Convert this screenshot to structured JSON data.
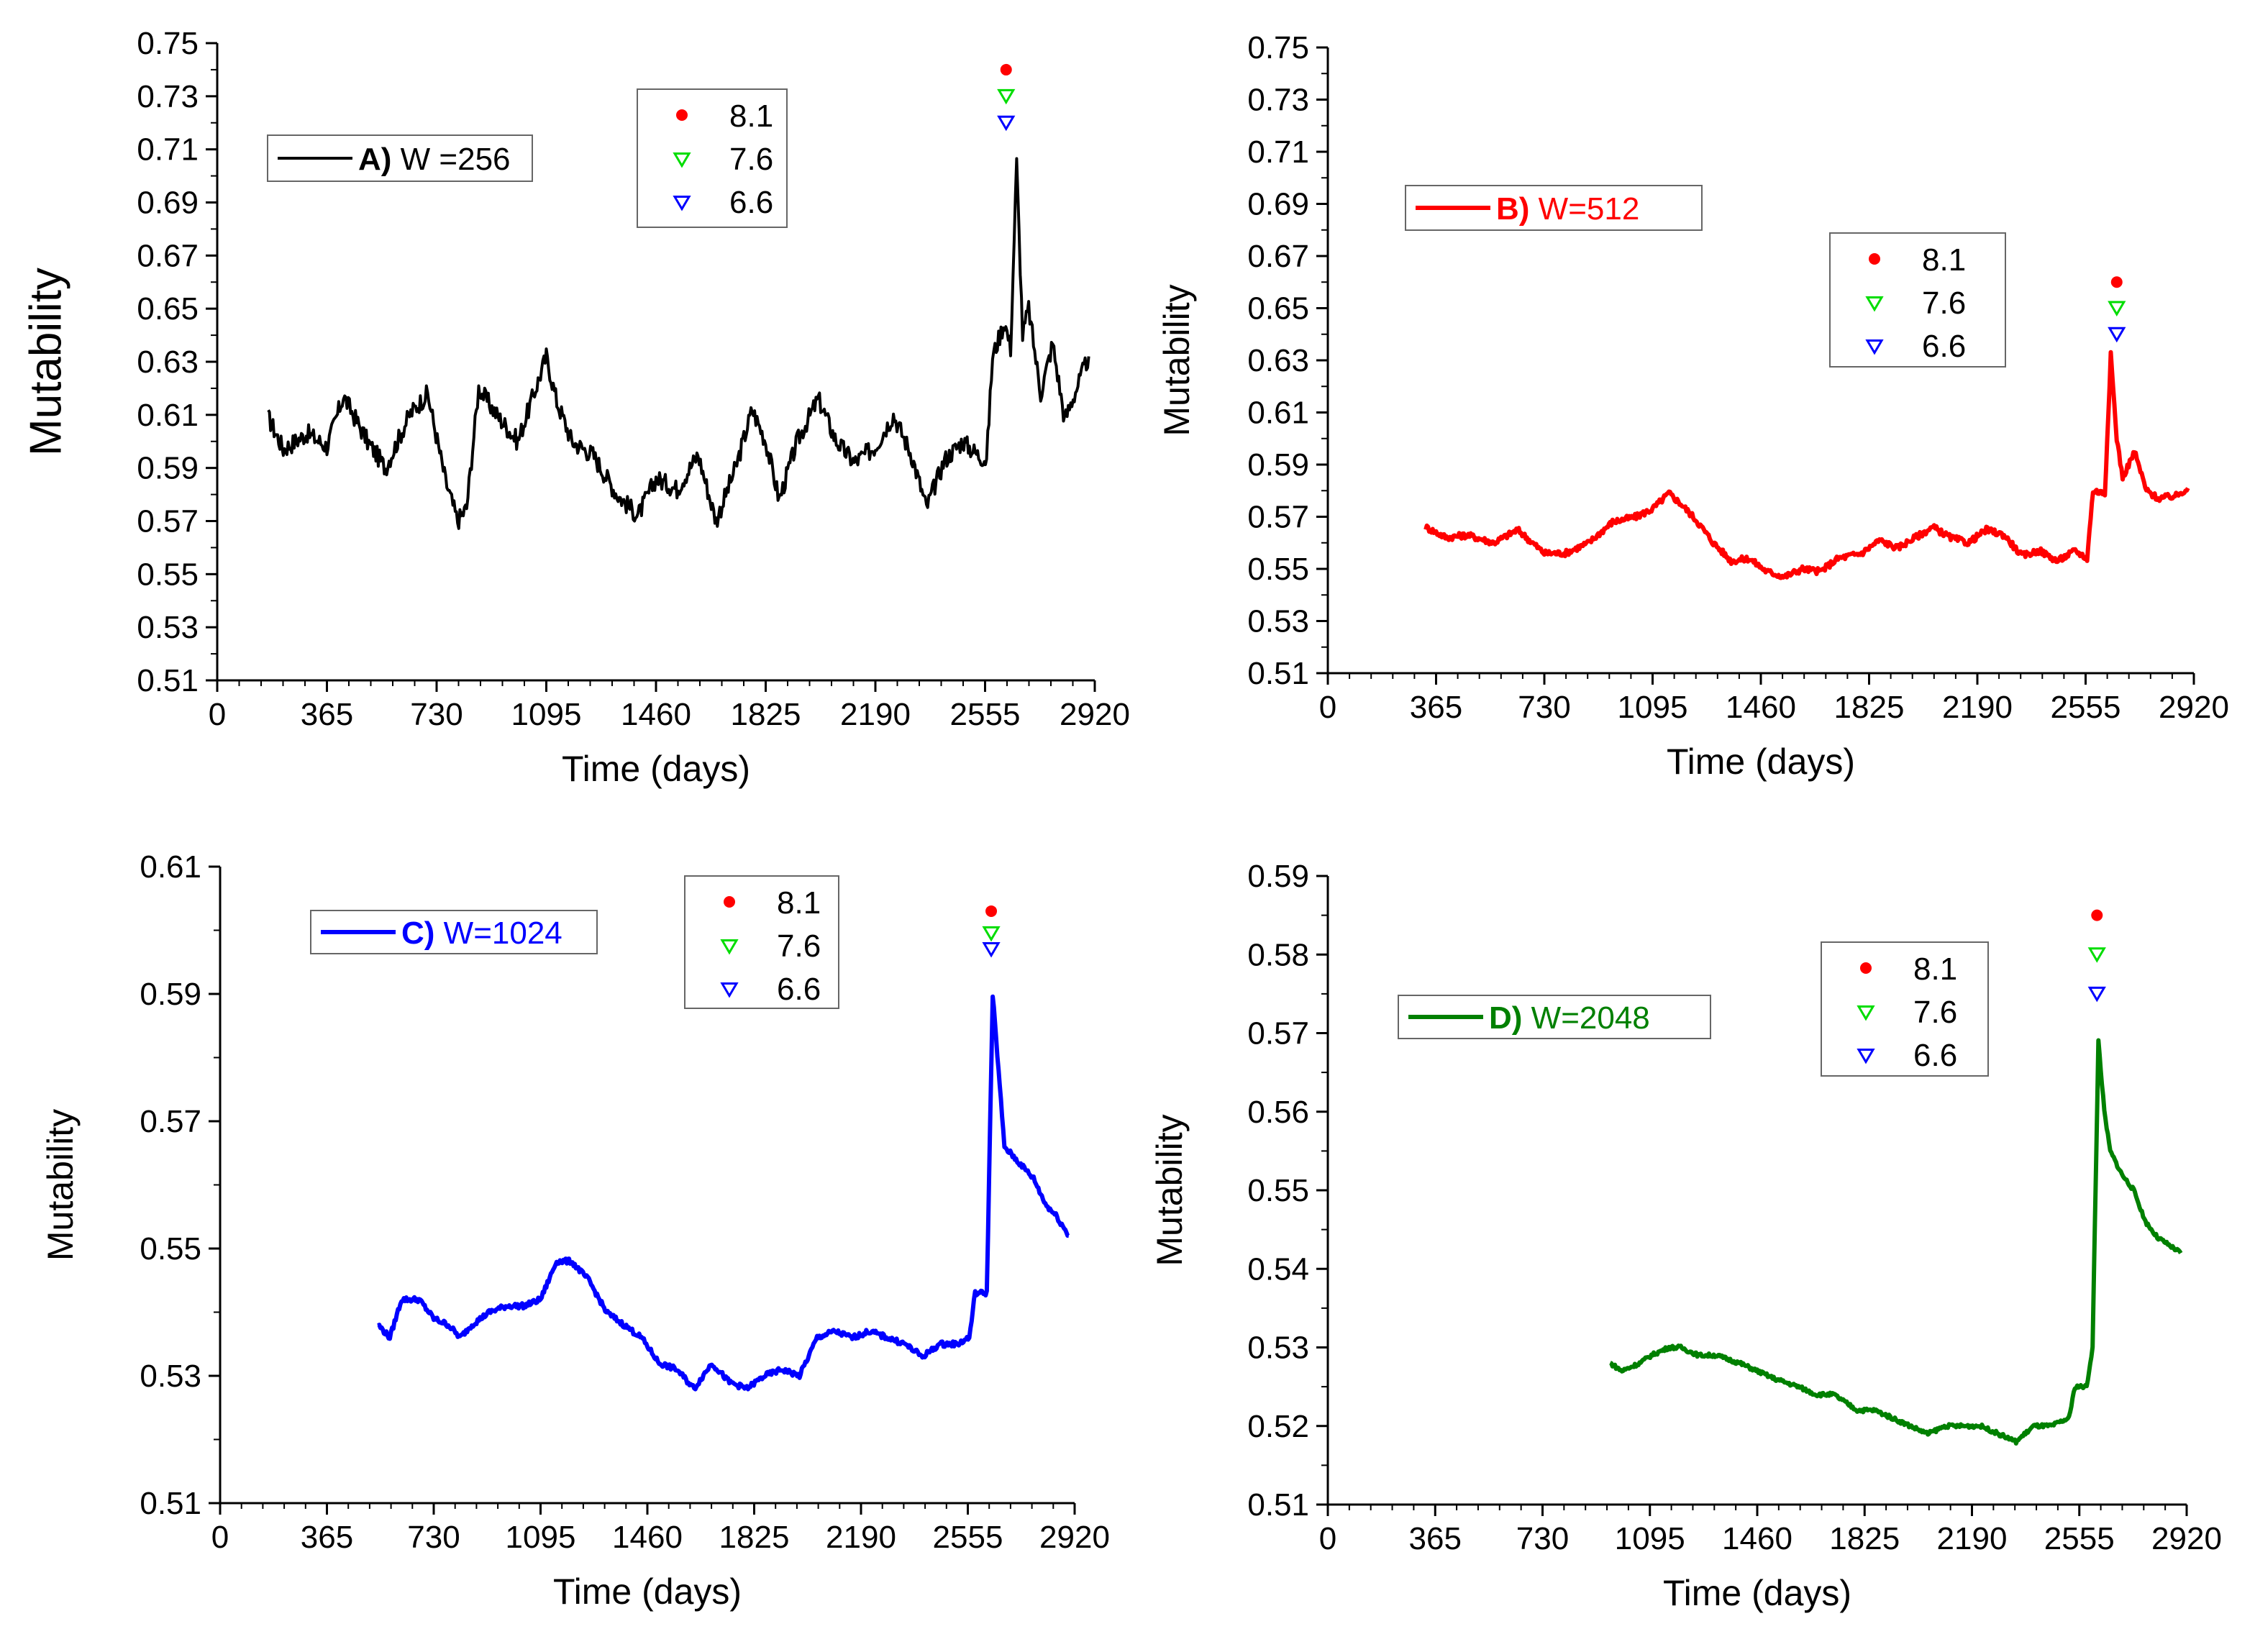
{
  "chart_data": [
    {
      "panel": "A",
      "type": "line",
      "series_label_bold": "A)",
      "series_label_rest": " W =256",
      "color": "#000000",
      "xlabel": "Time (days)",
      "ylabel": "Mutability",
      "xlim": [
        0,
        2920
      ],
      "ylim": [
        0.51,
        0.75
      ],
      "xticks": [
        0,
        365,
        730,
        1095,
        1460,
        1825,
        2190,
        2555,
        2920
      ],
      "yticks": [
        "0.51",
        "0.53",
        "0.55",
        "0.57",
        "0.59",
        "0.61",
        "0.63",
        "0.65",
        "0.67",
        "0.69",
        "0.71",
        "0.73",
        "0.75"
      ],
      "line_width": 4,
      "noise": 0.006,
      "x": [
        170,
        220,
        300,
        365,
        420,
        500,
        560,
        640,
        700,
        760,
        800,
        830,
        870,
        930,
        1000,
        1060,
        1095,
        1130,
        1180,
        1250,
        1330,
        1400,
        1460,
        1530,
        1600,
        1660,
        1725,
        1780,
        1825,
        1870,
        1930,
        2000,
        2060,
        2120,
        2190,
        2250,
        2310,
        2360,
        2420,
        2480,
        2530,
        2560,
        2580,
        2620,
        2640,
        2660,
        2680,
        2700,
        2740,
        2780,
        2820,
        2860,
        2900
      ],
      "y": [
        0.609,
        0.597,
        0.603,
        0.598,
        0.617,
        0.6,
        0.59,
        0.61,
        0.618,
        0.585,
        0.57,
        0.575,
        0.62,
        0.61,
        0.6,
        0.62,
        0.632,
        0.615,
        0.6,
        0.595,
        0.58,
        0.572,
        0.586,
        0.582,
        0.595,
        0.57,
        0.59,
        0.612,
        0.6,
        0.578,
        0.6,
        0.616,
        0.6,
        0.592,
        0.598,
        0.61,
        0.595,
        0.575,
        0.593,
        0.6,
        0.595,
        0.593,
        0.632,
        0.645,
        0.635,
        0.705,
        0.64,
        0.65,
        0.618,
        0.637,
        0.608,
        0.62,
        0.632
      ],
      "legend_markers": [
        {
          "label": "8.1",
          "symbol": "circle",
          "color": "#ff0000",
          "value": 0.74
        },
        {
          "label": "7.6",
          "symbol": "triangle-down",
          "color": "#00dd00",
          "value": 0.73
        },
        {
          "label": "6.6",
          "symbol": "triangle-down",
          "color": "#0000ff",
          "value": 0.72
        }
      ],
      "marker_x": 2625
    },
    {
      "panel": "B",
      "type": "line",
      "series_label_bold": "B)",
      "series_label_rest": " W=512",
      "color": "#ff0000",
      "xlabel": "Time (days)",
      "ylabel": "Mutability",
      "xlim": [
        0,
        2920
      ],
      "ylim": [
        0.51,
        0.75
      ],
      "xticks": [
        0,
        365,
        730,
        1095,
        1460,
        1825,
        2190,
        2555,
        2920
      ],
      "yticks": [
        "0.51",
        "0.53",
        "0.55",
        "0.57",
        "0.59",
        "0.61",
        "0.63",
        "0.65",
        "0.67",
        "0.69",
        "0.71",
        "0.73",
        "0.75"
      ],
      "line_width": 6,
      "noise": 0.002,
      "x": [
        330,
        400,
        470,
        560,
        640,
        730,
        800,
        880,
        960,
        1040,
        1095,
        1150,
        1190,
        1240,
        1300,
        1360,
        1420,
        1480,
        1540,
        1600,
        1660,
        1720,
        1800,
        1860,
        1920,
        1980,
        2040,
        2100,
        2160,
        2220,
        2280,
        2340,
        2400,
        2460,
        2520,
        2560,
        2580,
        2620,
        2640,
        2660,
        2680,
        2720,
        2760,
        2800,
        2860,
        2900
      ],
      "y": [
        0.566,
        0.562,
        0.563,
        0.56,
        0.565,
        0.556,
        0.556,
        0.56,
        0.568,
        0.57,
        0.573,
        0.579,
        0.575,
        0.569,
        0.56,
        0.553,
        0.554,
        0.549,
        0.547,
        0.55,
        0.549,
        0.554,
        0.556,
        0.561,
        0.558,
        0.562,
        0.566,
        0.562,
        0.56,
        0.565,
        0.563,
        0.555,
        0.557,
        0.553,
        0.557,
        0.554,
        0.58,
        0.579,
        0.632,
        0.6,
        0.585,
        0.595,
        0.58,
        0.577,
        0.578,
        0.581
      ],
      "legend_markers": [
        {
          "label": "8.1",
          "symbol": "circle",
          "color": "#ff0000",
          "value": 0.66
        },
        {
          "label": "7.6",
          "symbol": "triangle-down",
          "color": "#00dd00",
          "value": 0.65
        },
        {
          "label": "6.6",
          "symbol": "triangle-down",
          "color": "#0000ff",
          "value": 0.64
        }
      ],
      "marker_x": 2660
    },
    {
      "panel": "C",
      "type": "line",
      "series_label_bold": "C)",
      "series_label_rest": " W=1024",
      "color": "#0000ff",
      "xlabel": "Time (days)",
      "ylabel": "Mutability",
      "xlim": [
        0,
        2920
      ],
      "ylim": [
        0.51,
        0.61
      ],
      "xticks": [
        0,
        365,
        730,
        1095,
        1460,
        1825,
        2190,
        2555,
        2920
      ],
      "yticks": [
        "0.51",
        "0.53",
        "0.55",
        "0.57",
        "0.59",
        "0.61"
      ],
      "line_width": 6,
      "noise": 0.0007,
      "x": [
        540,
        580,
        620,
        680,
        730,
        780,
        820,
        860,
        920,
        980,
        1040,
        1095,
        1150,
        1200,
        1260,
        1320,
        1380,
        1440,
        1500,
        1560,
        1620,
        1680,
        1740,
        1800,
        1860,
        1920,
        1980,
        2040,
        2100,
        2160,
        2220,
        2280,
        2340,
        2400,
        2460,
        2520,
        2560,
        2580,
        2620,
        2640,
        2660,
        2680,
        2700,
        2740,
        2780,
        2820,
        2860,
        2900
      ],
      "y": [
        0.538,
        0.536,
        0.542,
        0.542,
        0.539,
        0.538,
        0.536,
        0.538,
        0.54,
        0.541,
        0.541,
        0.542,
        0.548,
        0.548,
        0.545,
        0.54,
        0.538,
        0.536,
        0.532,
        0.531,
        0.528,
        0.532,
        0.529,
        0.528,
        0.53,
        0.531,
        0.53,
        0.536,
        0.537,
        0.536,
        0.537,
        0.536,
        0.535,
        0.533,
        0.535,
        0.535,
        0.536,
        0.543,
        0.543,
        0.59,
        0.578,
        0.566,
        0.565,
        0.563,
        0.561,
        0.557,
        0.555,
        0.552
      ],
      "legend_markers": [
        {
          "label": "8.1",
          "symbol": "circle",
          "color": "#ff0000",
          "value": 0.603
        },
        {
          "label": "7.6",
          "symbol": "triangle-down",
          "color": "#00dd00",
          "value": 0.5995
        },
        {
          "label": "6.6",
          "symbol": "triangle-down",
          "color": "#0000ff",
          "value": 0.597
        }
      ],
      "marker_x": 2635
    },
    {
      "panel": "D",
      "type": "line",
      "series_label_bold": "D)",
      "series_label_rest": " W=2048",
      "color": "#008000",
      "xlabel": "Time (days)",
      "ylabel": "Mutability",
      "xlim": [
        0,
        2920
      ],
      "ylim": [
        0.51,
        0.59
      ],
      "xticks": [
        0,
        365,
        730,
        1095,
        1460,
        1825,
        2190,
        2555,
        2920
      ],
      "yticks": [
        "0.51",
        "0.52",
        "0.53",
        "0.54",
        "0.55",
        "0.56",
        "0.57",
        "0.58",
        "0.59"
      ],
      "line_width": 6,
      "noise": 0.0004,
      "x": [
        960,
        1000,
        1060,
        1100,
        1160,
        1200,
        1260,
        1320,
        1400,
        1460,
        1520,
        1600,
        1660,
        1720,
        1800,
        1860,
        1920,
        1980,
        2040,
        2100,
        2160,
        2220,
        2280,
        2340,
        2400,
        2460,
        2520,
        2540,
        2560,
        2580,
        2600,
        2620,
        2640,
        2660,
        2700,
        2740,
        2780,
        2820,
        2860,
        2900
      ],
      "y": [
        0.528,
        0.527,
        0.528,
        0.529,
        0.53,
        0.53,
        0.529,
        0.529,
        0.528,
        0.527,
        0.526,
        0.525,
        0.524,
        0.524,
        0.522,
        0.522,
        0.521,
        0.52,
        0.519,
        0.52,
        0.52,
        0.52,
        0.519,
        0.518,
        0.52,
        0.52,
        0.521,
        0.525,
        0.525,
        0.525,
        0.53,
        0.569,
        0.56,
        0.555,
        0.552,
        0.55,
        0.546,
        0.544,
        0.543,
        0.542
      ],
      "legend_markers": [
        {
          "label": "8.1",
          "symbol": "circle",
          "color": "#ff0000",
          "value": 0.585
        },
        {
          "label": "7.6",
          "symbol": "triangle-down",
          "color": "#00dd00",
          "value": 0.58
        },
        {
          "label": "6.6",
          "symbol": "triangle-down",
          "color": "#0000ff",
          "value": 0.575
        }
      ],
      "marker_x": 2615
    }
  ]
}
